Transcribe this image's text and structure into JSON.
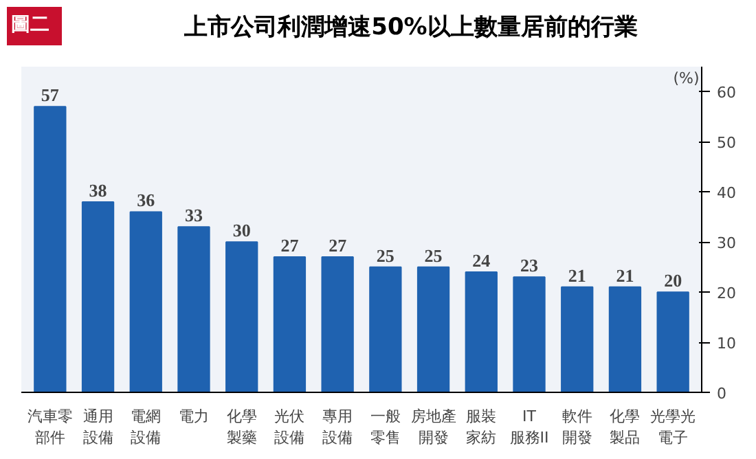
{
  "chart_data": {
    "type": "bar",
    "title": "上市公司利潤增速50%以上數量居前的行業",
    "ylabel": "(%)",
    "annotations": [
      "圖二"
    ],
    "categories": [
      "汽車零部件",
      "通用設備",
      "電網設備",
      "電力",
      "化學製藥",
      "光伏設備",
      "專用設備",
      "一般零售",
      "房地產開發",
      "服裝家紡",
      "IT\n服務II",
      "軟件開發",
      "化學製品",
      "光學光電子"
    ],
    "values": [
      57,
      38,
      36,
      33,
      30,
      27,
      27,
      25,
      25,
      24,
      23,
      21,
      21,
      20
    ],
    "color": "#1f62b0",
    "data_labels": true,
    "ylim": [
      0,
      65
    ],
    "yticks": [
      0,
      10,
      20,
      30,
      40,
      50,
      60
    ],
    "grid": false
  }
}
